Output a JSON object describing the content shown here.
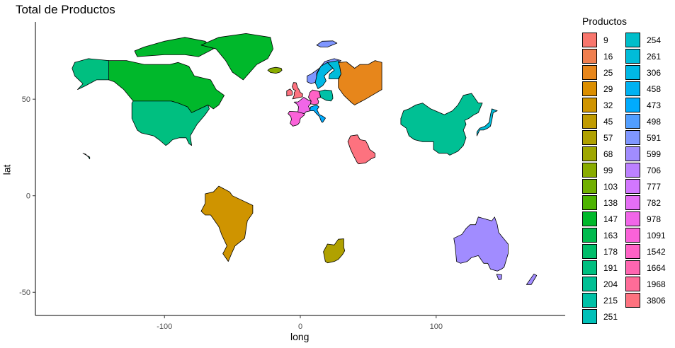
{
  "title": "Total de Productos",
  "xlabel": "long",
  "ylabel": "lat",
  "legend": {
    "title": "Productos",
    "items": [
      {
        "label": "9",
        "color": "#F8766D"
      },
      {
        "label": "16",
        "color": "#F07F4F"
      },
      {
        "label": "25",
        "color": "#E7861B"
      },
      {
        "label": "29",
        "color": "#DB8E00"
      },
      {
        "label": "32",
        "color": "#CF9400"
      },
      {
        "label": "45",
        "color": "#C09B00"
      },
      {
        "label": "57",
        "color": "#B0A100"
      },
      {
        "label": "68",
        "color": "#9EA700"
      },
      {
        "label": "99",
        "color": "#89AC00"
      },
      {
        "label": "103",
        "color": "#70B000"
      },
      {
        "label": "138",
        "color": "#4DB400"
      },
      {
        "label": "147",
        "color": "#00B82B"
      },
      {
        "label": "163",
        "color": "#00BB4E"
      },
      {
        "label": "178",
        "color": "#00BD6A"
      },
      {
        "label": "191",
        "color": "#00BF80"
      },
      {
        "label": "204",
        "color": "#00C094"
      },
      {
        "label": "215",
        "color": "#00C1A7"
      },
      {
        "label": "251",
        "color": "#00C0B8"
      },
      {
        "label": "254",
        "color": "#00BECA"
      },
      {
        "label": "261",
        "color": "#00BCD9"
      },
      {
        "label": "306",
        "color": "#00B8E5"
      },
      {
        "label": "458",
        "color": "#00B2F2"
      },
      {
        "label": "473",
        "color": "#00ABFD"
      },
      {
        "label": "498",
        "color": "#529EFF"
      },
      {
        "label": "591",
        "color": "#7F96FF"
      },
      {
        "label": "599",
        "color": "#A18CFF"
      },
      {
        "label": "706",
        "color": "#BC81FF"
      },
      {
        "label": "777",
        "color": "#D277FF"
      },
      {
        "label": "782",
        "color": "#E56EF5"
      },
      {
        "label": "978",
        "color": "#F166E8"
      },
      {
        "label": "1091",
        "color": "#FA62D9"
      },
      {
        "label": "1542",
        "color": "#FF62C6"
      },
      {
        "label": "1664",
        "color": "#FF66B0"
      },
      {
        "label": "1968",
        "color": "#FF6C98"
      },
      {
        "label": "3806",
        "color": "#FD727F"
      }
    ]
  },
  "chart_data": {
    "type": "map",
    "title": "Total de Productos",
    "xlabel": "long",
    "ylabel": "lat",
    "xlim": [
      -195,
      195
    ],
    "ylim": [
      -62,
      90
    ],
    "x_ticks": [
      -100,
      0,
      100
    ],
    "y_ticks": [
      -50,
      0,
      50
    ],
    "grid": false,
    "legend_position": "right",
    "regions": [
      {
        "name": "Canada",
        "value": 147
      },
      {
        "name": "Greenland",
        "value": 147
      },
      {
        "name": "USA",
        "value": 191
      },
      {
        "name": "Brazil",
        "value": 32
      },
      {
        "name": "Saudi Arabia",
        "value": 3806
      },
      {
        "name": "China",
        "value": 204
      },
      {
        "name": "Japan",
        "value": 261
      },
      {
        "name": "Australia",
        "value": 599
      },
      {
        "name": "South Africa",
        "value": 57
      },
      {
        "name": "Iceland",
        "value": 99
      },
      {
        "name": "Spain",
        "value": 1091
      },
      {
        "name": "France",
        "value": 978
      },
      {
        "name": "United Kingdom",
        "value": 3806
      },
      {
        "name": "Germany",
        "value": 1542
      },
      {
        "name": "Sweden",
        "value": 306
      },
      {
        "name": "Finland",
        "value": 261
      },
      {
        "name": "Norway",
        "value": 591
      },
      {
        "name": "Poland",
        "value": 215
      },
      {
        "name": "Italy",
        "value": 473
      },
      {
        "name": "Russia",
        "value": 25
      }
    ]
  }
}
